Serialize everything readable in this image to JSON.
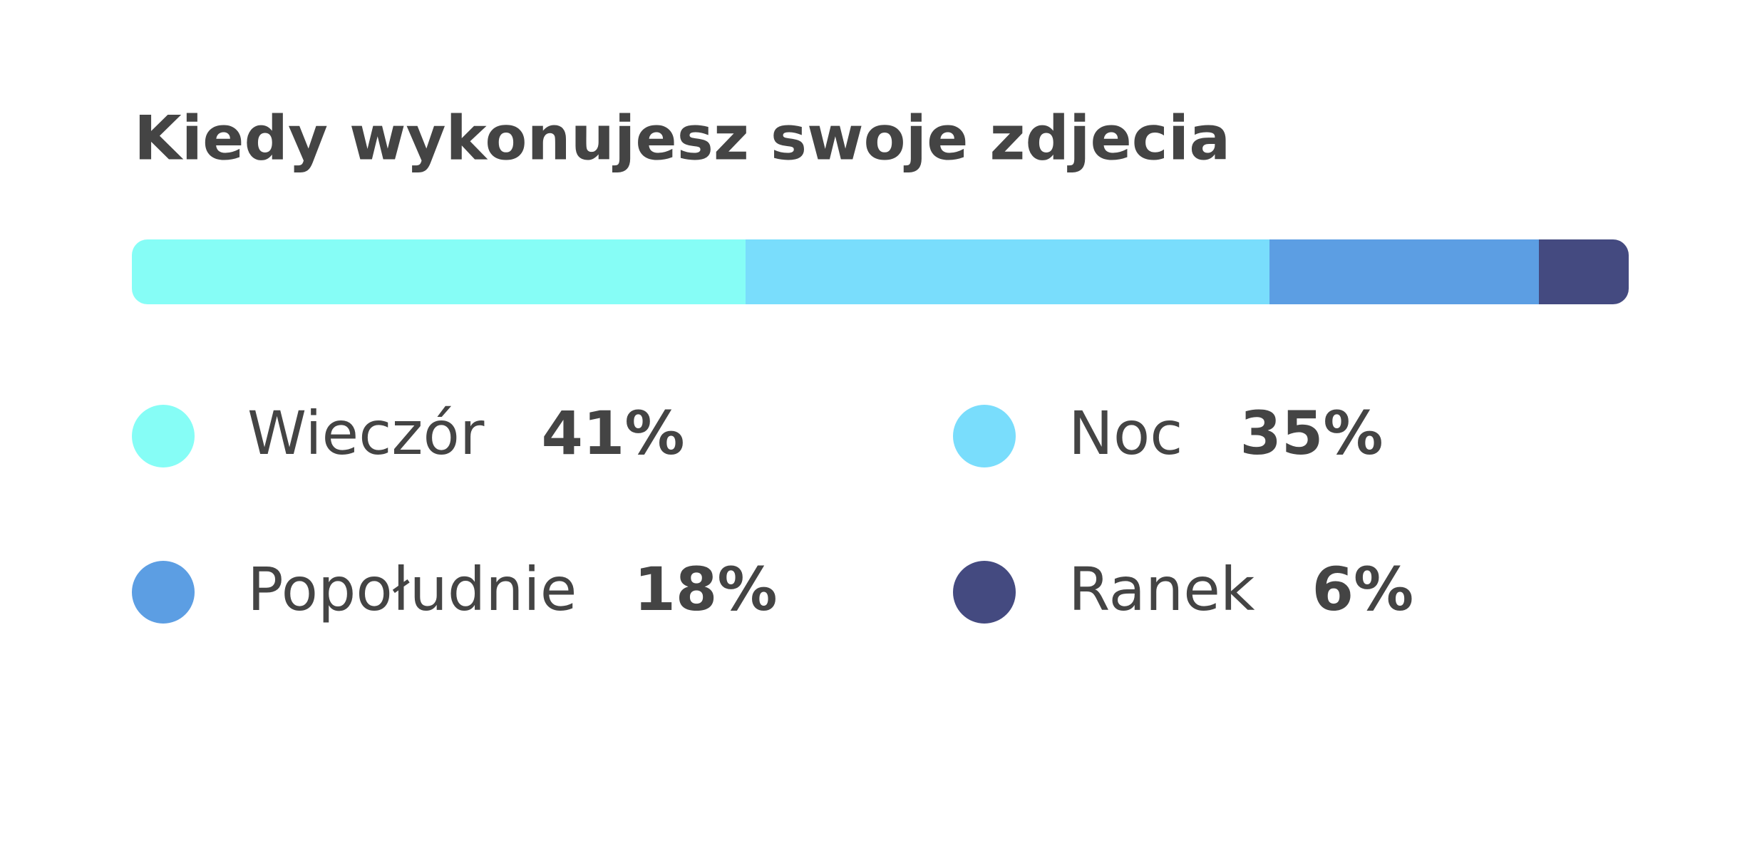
{
  "chart_data": {
    "type": "stacked-bar",
    "title": "Kiedy wykonujesz swoje zdjecia",
    "categories": [
      "Wieczór",
      "Noc",
      "Popołudnie",
      "Ranek"
    ],
    "values": [
      41,
      35,
      18,
      6
    ],
    "value_labels": [
      "41%",
      "35%",
      "18%",
      "6%"
    ],
    "colors": [
      "#86fdf6",
      "#79ddfc",
      "#5c9ee3",
      "#444a80"
    ]
  }
}
